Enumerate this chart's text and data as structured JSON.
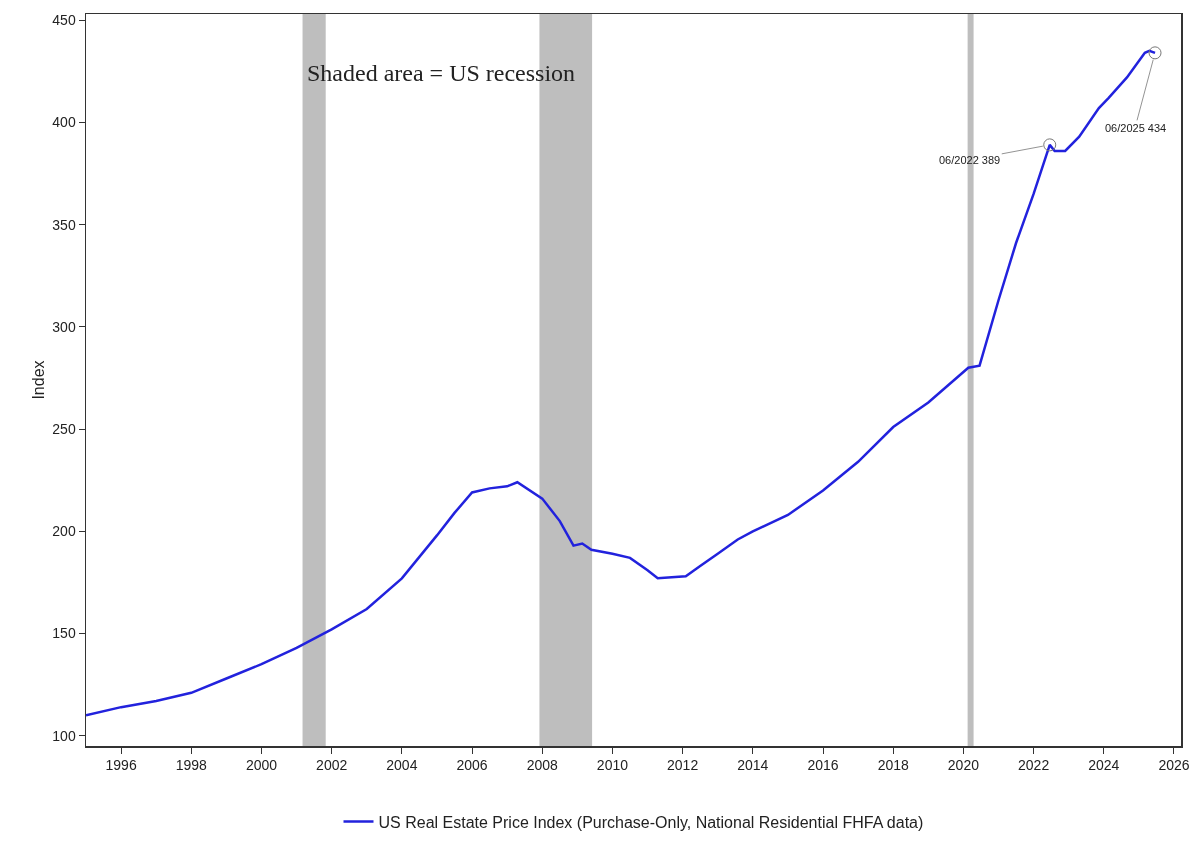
{
  "chart_data": {
    "type": "line",
    "ylabel": "Index",
    "x": [
      1995.0,
      1996.0,
      1997.0,
      1998.0,
      1999.0,
      2000.0,
      2001.0,
      2002.0,
      2003.0,
      2004.0,
      2005.0,
      2005.5,
      2006.0,
      2006.5,
      2007.0,
      2007.29,
      2008.0,
      2008.5,
      2008.89,
      2009.14,
      2009.4,
      2010.0,
      2010.5,
      2011.0,
      2011.29,
      2012.09,
      2012.5,
      2013.0,
      2013.57,
      2014.0,
      2015.0,
      2016.0,
      2017.0,
      2018.0,
      2019.0,
      2020.14,
      2020.46,
      2021.0,
      2021.5,
      2022.0,
      2022.46,
      2022.6,
      2022.9,
      2023.3,
      2023.86,
      2024.14,
      2024.4,
      2024.66,
      2025.17,
      2025.3,
      2025.46
    ],
    "series": [
      {
        "name": "US Real Estate Price Index (Purchase-Only, National Residential FHFA data)",
        "color": "#2222dd",
        "values": [
          110,
          114,
          117,
          121,
          128,
          135,
          143,
          152,
          162,
          177,
          198,
          209,
          219,
          221,
          222,
          224,
          216,
          205,
          193,
          194,
          191,
          189,
          187,
          181,
          177,
          178,
          183,
          189,
          196,
          200,
          208,
          220,
          234,
          251,
          263,
          280,
          281,
          313,
          341,
          365,
          389,
          386,
          386,
          393,
          407,
          412,
          417,
          422,
          434,
          435,
          434
        ]
      }
    ],
    "xlim": [
      1995,
      2026.2
    ],
    "xticks": [
      1996,
      1998,
      2000,
      2002,
      2004,
      2006,
      2008,
      2010,
      2012,
      2014,
      2016,
      2018,
      2020,
      2022,
      2024,
      2026
    ],
    "ylim": [
      95,
      453
    ],
    "yticks": [
      100,
      150,
      200,
      250,
      300,
      350,
      400,
      450
    ],
    "grid": false,
    "legend": "bottom",
    "marker": "none",
    "line_style": "solid",
    "bands": [
      {
        "axis": "x",
        "from": 2001.17,
        "to": 2001.83,
        "color": "#bebebe"
      },
      {
        "axis": "x",
        "from": 2007.92,
        "to": 2009.42,
        "color": "#bebebe"
      },
      {
        "axis": "x",
        "from": 2020.12,
        "to": 2020.29,
        "color": "#bebebe"
      }
    ],
    "annotations": [
      "Shaded area = US recession",
      {
        "text": "06/2022 389",
        "x": 2022.46,
        "y": 389
      },
      {
        "text": "06/2025 434",
        "x": 2025.46,
        "y": 434
      }
    ]
  }
}
